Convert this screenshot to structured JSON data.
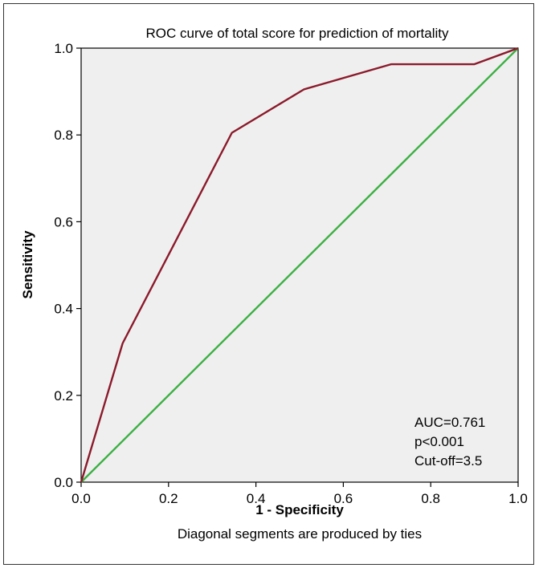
{
  "chart_data": {
    "type": "line",
    "title": "ROC curve of total score for prediction of mortality",
    "xlabel": "1 - Specificity",
    "ylabel": "Sensitivity",
    "footnote": "Diagonal segments are produced by ties",
    "xlim": [
      0,
      1
    ],
    "ylim": [
      0,
      1
    ],
    "x_ticks": [
      "0.0",
      "0.2",
      "0.4",
      "0.6",
      "0.8",
      "1.0"
    ],
    "y_ticks": [
      "0.0",
      "0.2",
      "0.4",
      "0.6",
      "0.8",
      "1.0"
    ],
    "grid": false,
    "series": [
      {
        "x": [
          0.0,
          0.095,
          0.345,
          0.51,
          0.71,
          0.9,
          1.0
        ],
        "y": [
          0.0,
          0.32,
          0.805,
          0.905,
          0.963,
          0.963,
          1.0
        ],
        "color": "#8b1a2b"
      },
      {
        "x": [
          0.0,
          1.0
        ],
        "y": [
          0.0,
          1.0
        ],
        "color": "#3cb043"
      }
    ],
    "annotations": [
      "AUC=0.761",
      "p<0.001",
      "Cut-off=3.5"
    ],
    "plot_background": "#efefef"
  }
}
